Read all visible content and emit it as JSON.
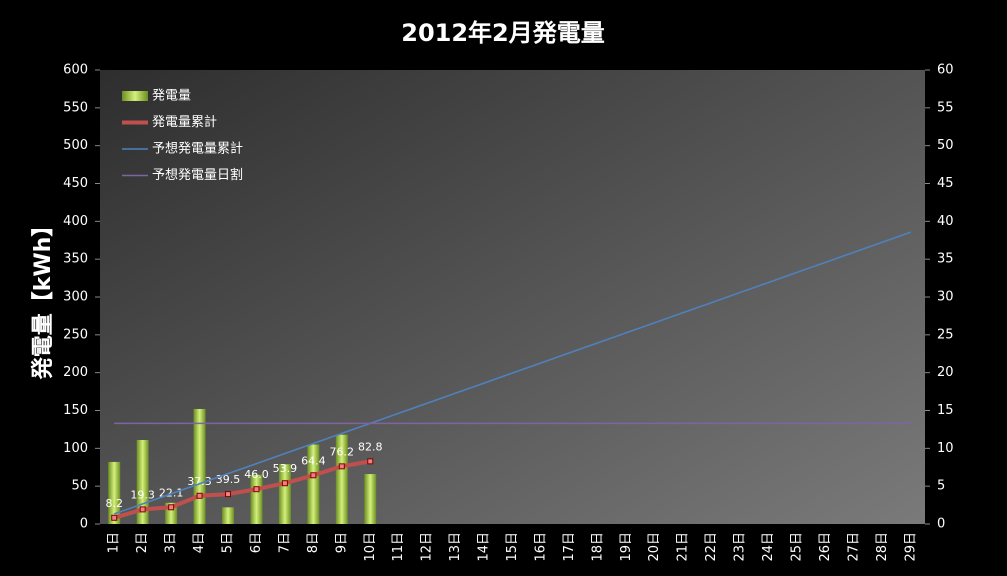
{
  "chart_data": {
    "type": "combo",
    "title": "2012年2月発電量",
    "y_label": "発電量【kWh】",
    "categories": [
      "1日",
      "2日",
      "3日",
      "4日",
      "5日",
      "6日",
      "7日",
      "8日",
      "9日",
      "10日",
      "11日",
      "12日",
      "13日",
      "14日",
      "15日",
      "16日",
      "17日",
      "18日",
      "19日",
      "20日",
      "21日",
      "22日",
      "23日",
      "24日",
      "25日",
      "26日",
      "27日",
      "28日",
      "29日"
    ],
    "series": [
      {
        "name": "発電量",
        "kind": "bar",
        "axis": "y2",
        "color": "#9acd32",
        "values": [
          8.2,
          11.1,
          2.8,
          15.2,
          2.2,
          6.5,
          7.9,
          10.5,
          11.8,
          6.6,
          null,
          null,
          null,
          null,
          null,
          null,
          null,
          null,
          null,
          null,
          null,
          null,
          null,
          null,
          null,
          null,
          null,
          null,
          null
        ]
      },
      {
        "name": "発電量累計",
        "kind": "line",
        "markers": true,
        "color": "#c0504d",
        "values": [
          8.2,
          19.3,
          22.1,
          37.3,
          39.5,
          46.0,
          53.9,
          64.4,
          76.2,
          82.8,
          null,
          null,
          null,
          null,
          null,
          null,
          null,
          null,
          null,
          null,
          null,
          null,
          null,
          null,
          null,
          null,
          null,
          null,
          null
        ],
        "value_labels": [
          "8.2",
          "19.3",
          "22.1",
          "37.3",
          "39.5",
          "46.0",
          "53.9",
          "64.4",
          "76.2",
          "82.8",
          null,
          null,
          null,
          null,
          null,
          null,
          null,
          null,
          null,
          null,
          null,
          null,
          null,
          null,
          null,
          null,
          null,
          null,
          null
        ]
      },
      {
        "name": "予想発電量累計",
        "kind": "line",
        "color": "#4f81bd",
        "values": [
          13.3,
          26.6,
          39.9,
          53.2,
          66.5,
          79.8,
          93.1,
          106.4,
          119.7,
          133,
          146.3,
          159.6,
          172.9,
          186.2,
          199.5,
          212.8,
          226.1,
          239.4,
          252.7,
          266,
          279.3,
          292.6,
          305.9,
          319.2,
          332.5,
          345.8,
          359.1,
          372.4,
          385.7
        ]
      },
      {
        "name": "予想発電量日割",
        "kind": "line",
        "axis": "y2",
        "color": "#8064a2",
        "values": [
          13.3,
          13.3,
          13.3,
          13.3,
          13.3,
          13.3,
          13.3,
          13.3,
          13.3,
          13.3,
          13.3,
          13.3,
          13.3,
          13.3,
          13.3,
          13.3,
          13.3,
          13.3,
          13.3,
          13.3,
          13.3,
          13.3,
          13.3,
          13.3,
          13.3,
          13.3,
          13.3,
          13.3,
          13.3
        ]
      }
    ],
    "ylim": [
      0,
      600
    ],
    "yticks": [
      0,
      50,
      100,
      150,
      200,
      250,
      300,
      350,
      400,
      450,
      500,
      550,
      600
    ],
    "y2lim": [
      0,
      60
    ],
    "y2ticks": [
      0,
      5,
      10,
      15,
      20,
      25,
      30,
      35,
      40,
      45,
      50,
      55,
      60
    ],
    "grid": false,
    "legend": "upper left"
  }
}
